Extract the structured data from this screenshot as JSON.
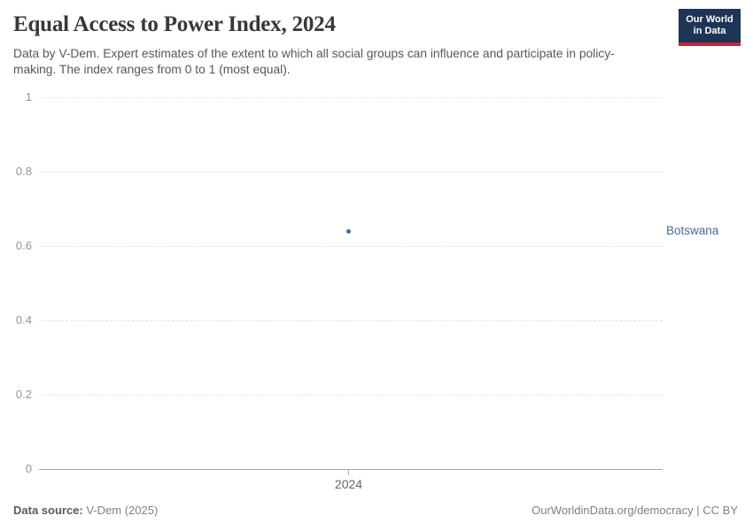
{
  "header": {
    "title": "Equal Access to Power Index, 2024",
    "subtitle": "Data by V-Dem. Expert estimates of the extent to which all social groups can influence and participate in policy-making. The index ranges from 0 to 1 (most equal).",
    "logo": {
      "line1": "Our World",
      "line2": "in Data"
    }
  },
  "chart_data": {
    "type": "scatter",
    "title": "Equal Access to Power Index, 2024",
    "xlabel": "",
    "ylabel": "",
    "ylim": [
      0,
      1
    ],
    "yticks": [
      0,
      0.2,
      0.4,
      0.6,
      0.8,
      1
    ],
    "ytick_labels": [
      "0",
      "0.2",
      "0.4",
      "0.6",
      "0.8",
      "1"
    ],
    "xticks": [
      2024
    ],
    "xtick_labels": [
      "2024"
    ],
    "grid": "horizontal-dashed",
    "legend_position": "right-inline-label",
    "series": [
      {
        "name": "Botswana",
        "x": [
          2024
        ],
        "y": [
          0.64
        ],
        "color": "#4c6a9c"
      }
    ],
    "entity_label": "Botswana"
  },
  "footer": {
    "source_label": "Data source:",
    "source_value": "V-Dem (2025)",
    "credit": "OurWorldinData.org/democracy | CC BY"
  },
  "colors": {
    "accent_blue": "#4c6a9c",
    "title_text": "#383838",
    "subtitle_text": "#575757",
    "tick_text": "#949494",
    "gridline": "#e4e4e4",
    "axis_line": "#a5a5a5",
    "footer_text": "#818181",
    "logo_bg": "#1d3456",
    "logo_stripe": "#c0293a"
  }
}
